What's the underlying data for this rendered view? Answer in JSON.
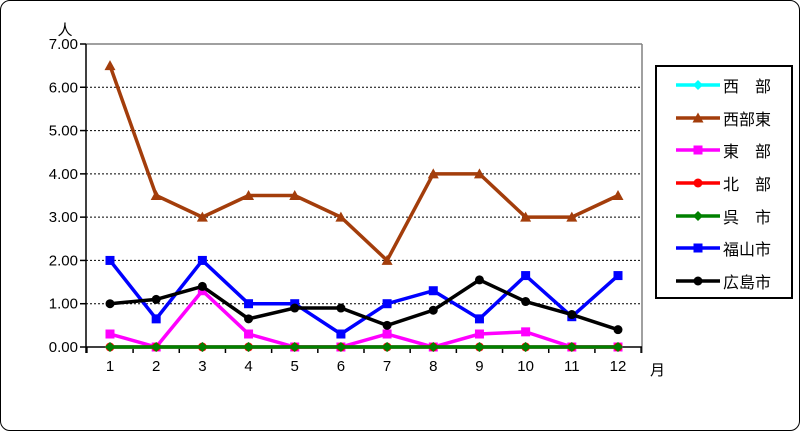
{
  "window": {
    "background": "#FFFFFF",
    "frame_border_color": "#000000",
    "plot_border_gray": "#808080",
    "axis_color": "#000000",
    "gridline_color": "#000000"
  },
  "chart_data": {
    "type": "line",
    "title": "",
    "xlabel": "月",
    "ylabel": "人",
    "categories": [
      1,
      2,
      3,
      4,
      5,
      6,
      7,
      8,
      9,
      10,
      11,
      12
    ],
    "x_tick_labels": [
      "1",
      "2",
      "3",
      "4",
      "5",
      "6",
      "7",
      "8",
      "9",
      "10",
      "11",
      "12"
    ],
    "y_tick_labels": [
      "0.00",
      "1.00",
      "2.00",
      "3.00",
      "4.00",
      "5.00",
      "6.00",
      "7.00"
    ],
    "ylim": [
      0,
      7
    ],
    "y_step": 1,
    "grid": "horizontal-dotted",
    "legend_position": "right",
    "series": [
      {
        "name": "西　部",
        "color": "#00FFFF",
        "marker": "diamond",
        "values": [
          0,
          0,
          0,
          0,
          0,
          0,
          0,
          0,
          0,
          0,
          0,
          0
        ]
      },
      {
        "name": "西部東",
        "color": "#A33D0B",
        "marker": "triangle",
        "values": [
          6.5,
          3.5,
          3.0,
          3.5,
          3.5,
          3.0,
          2.0,
          4.0,
          4.0,
          3.0,
          3.0,
          3.5
        ]
      },
      {
        "name": "東　部",
        "color": "#FF00FF",
        "marker": "square",
        "values": [
          0.3,
          0,
          1.3,
          0.3,
          0,
          0,
          0.3,
          0,
          0.3,
          0.35,
          0,
          0
        ]
      },
      {
        "name": "北　部",
        "color": "#FF0000",
        "marker": "circle",
        "values": [
          0,
          0,
          0,
          0,
          0,
          0,
          0,
          0,
          0,
          0,
          0,
          0
        ]
      },
      {
        "name": "呉　市",
        "color": "#008000",
        "marker": "diamond",
        "values": [
          0,
          0,
          0,
          0,
          0,
          0,
          0,
          0,
          0,
          0,
          0,
          0
        ]
      },
      {
        "name": "福山市",
        "color": "#0000FF",
        "marker": "square",
        "values": [
          2.0,
          0.65,
          2.0,
          1.0,
          1.0,
          0.3,
          1.0,
          1.3,
          0.65,
          1.65,
          0.7,
          1.65
        ]
      },
      {
        "name": "広島市",
        "color": "#000000",
        "marker": "circle",
        "values": [
          1.0,
          1.1,
          1.4,
          0.65,
          0.9,
          0.9,
          0.5,
          0.85,
          1.55,
          1.05,
          0.75,
          0.4
        ]
      }
    ]
  }
}
